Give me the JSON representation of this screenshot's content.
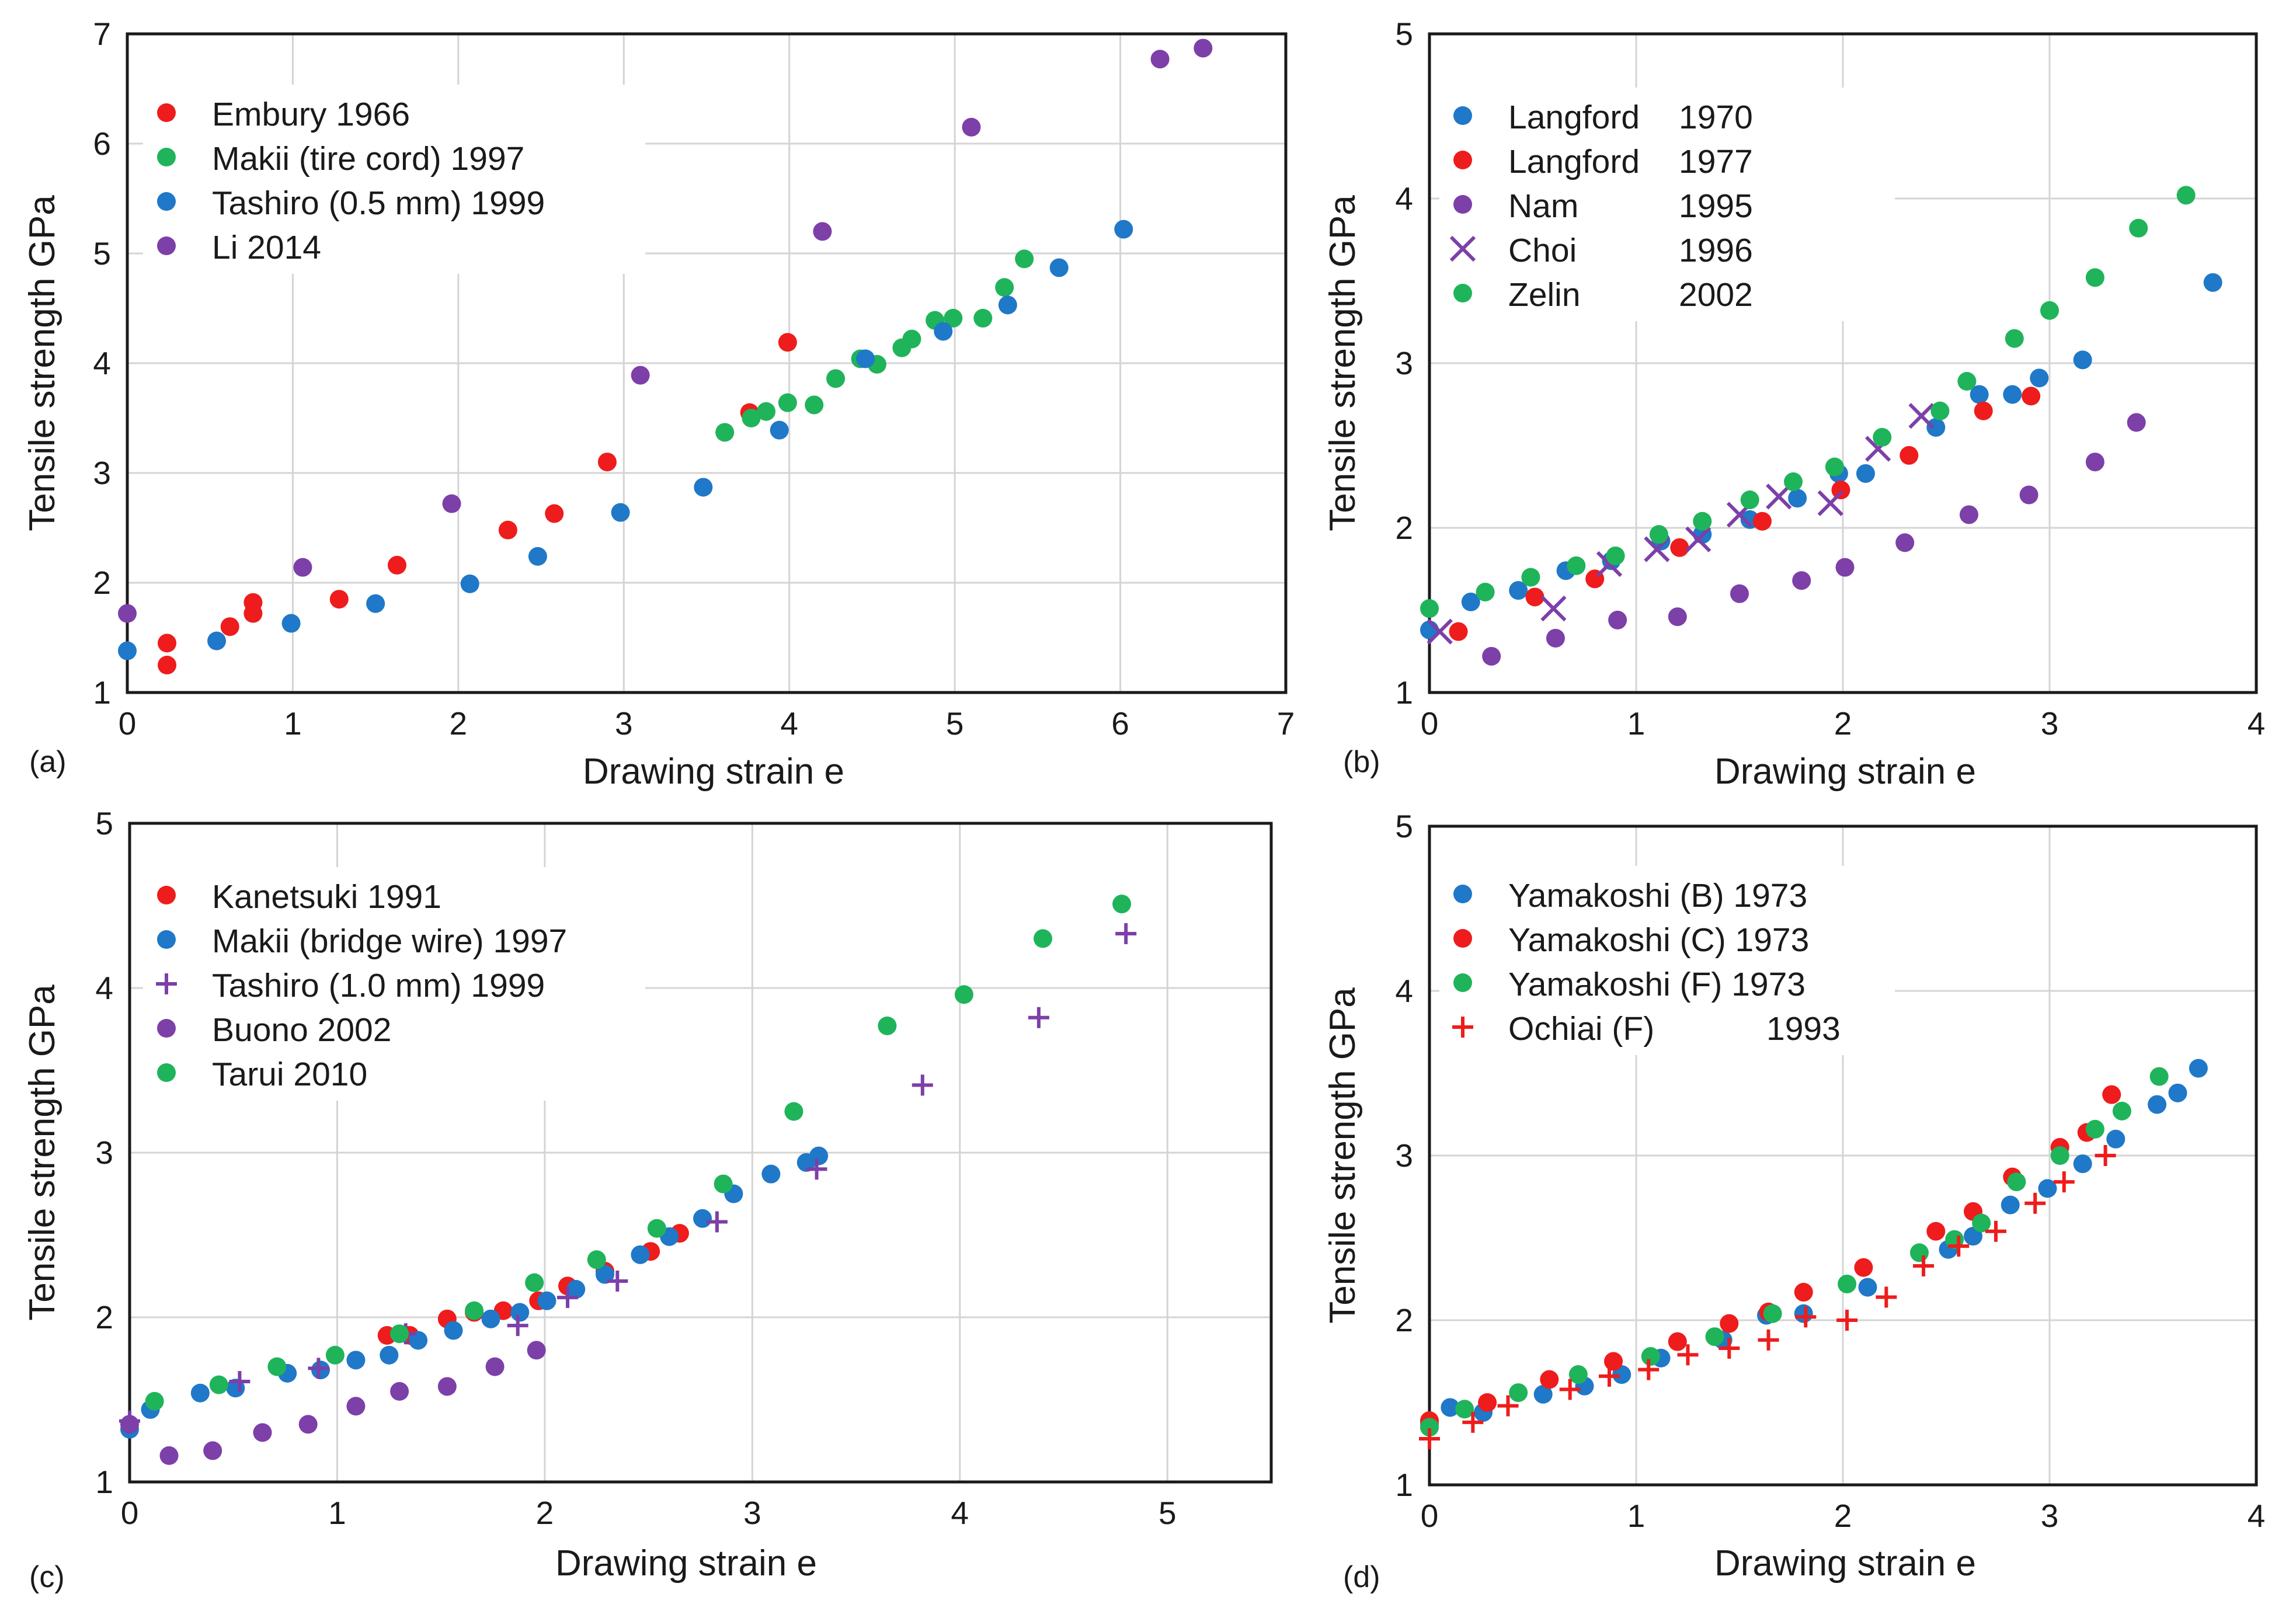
{
  "colors": {
    "red": "#ee1c1c",
    "green": "#1fb45a",
    "blue": "#1f78c8",
    "purple": "#7d3fa8"
  },
  "chart_data": [
    {
      "type": "scatter",
      "panel_label": "(a)",
      "xlabel": "Drawing strain  e",
      "ylabel": "Tensile strength  GPa",
      "xlim": [
        0,
        7
      ],
      "ylim": [
        1,
        7
      ],
      "xticks": [
        "0",
        "1",
        "2",
        "3",
        "4",
        "5",
        "6",
        "7"
      ],
      "yticks": [
        "1",
        "2",
        "3",
        "4",
        "5",
        "6",
        "7"
      ],
      "grid": true,
      "legend": "top-left",
      "series": [
        {
          "name": "Embury 1966",
          "color": "red",
          "marker": "circle",
          "x": [
            0.24,
            0.24,
            0.62,
            0.76,
            0.76,
            1.28,
            1.63,
            2.3,
            2.58,
            2.9,
            3.76,
            3.99
          ],
          "y": [
            1.25,
            1.45,
            1.6,
            1.72,
            1.82,
            1.85,
            2.16,
            2.48,
            2.63,
            3.1,
            3.55,
            4.19
          ]
        },
        {
          "name": "Makii (tire cord) 1997",
          "color": "green",
          "marker": "circle",
          "x": [
            3.61,
            3.77,
            3.86,
            3.99,
            4.15,
            4.28,
            4.43,
            4.53,
            4.68,
            4.74,
            4.88,
            4.99,
            5.17,
            5.3,
            5.42
          ],
          "y": [
            3.37,
            3.5,
            3.56,
            3.64,
            3.62,
            3.86,
            4.04,
            3.99,
            4.14,
            4.22,
            4.39,
            4.41,
            4.41,
            4.69,
            4.95
          ]
        },
        {
          "name": "Tashiro (0.5 mm) 1999",
          "color": "blue",
          "marker": "circle",
          "x": [
            0.0,
            0.54,
            0.99,
            1.5,
            2.07,
            2.48,
            2.98,
            3.48,
            3.94,
            4.46,
            4.93,
            5.32,
            5.63,
            6.02
          ],
          "y": [
            1.38,
            1.47,
            1.63,
            1.81,
            1.99,
            2.24,
            2.64,
            2.87,
            3.39,
            4.04,
            4.29,
            4.53,
            4.87,
            5.22
          ]
        },
        {
          "name": "Li  2014",
          "color": "purple",
          "marker": "circle",
          "x": [
            0.0,
            1.06,
            1.96,
            3.1,
            4.2,
            5.1,
            6.24,
            6.5
          ],
          "y": [
            1.72,
            2.14,
            2.72,
            3.89,
            5.2,
            6.15,
            6.77,
            6.87
          ]
        }
      ]
    },
    {
      "type": "scatter",
      "panel_label": "(b)",
      "xlabel": "Drawing strain  e",
      "ylabel": "Tensile strength  GPa",
      "xlim": [
        0,
        4
      ],
      "ylim": [
        1,
        5
      ],
      "xticks": [
        "0",
        "1",
        "2",
        "3",
        "4"
      ],
      "yticks": [
        "1",
        "2",
        "3",
        "4",
        "5"
      ],
      "grid": true,
      "legend": "top-left",
      "series": [
        {
          "name": "Langford",
          "year": "1970",
          "color": "blue",
          "marker": "circle",
          "x": [
            0.0,
            0.2,
            0.43,
            0.66,
            0.88,
            1.12,
            1.32,
            1.55,
            1.78,
            1.98,
            2.11,
            2.45,
            2.66,
            2.82,
            2.95,
            3.16,
            3.79
          ],
          "y": [
            1.38,
            1.55,
            1.62,
            1.74,
            1.8,
            1.92,
            1.96,
            2.05,
            2.18,
            2.33,
            2.33,
            2.61,
            2.81,
            2.81,
            2.91,
            3.02,
            3.49
          ]
        },
        {
          "name": "Langford",
          "year": "1977",
          "color": "red",
          "marker": "circle",
          "x": [
            0.14,
            0.51,
            0.8,
            1.21,
            1.61,
            1.99,
            2.32,
            2.68,
            2.91
          ],
          "y": [
            1.37,
            1.58,
            1.69,
            1.88,
            2.04,
            2.23,
            2.44,
            2.71,
            2.8
          ]
        },
        {
          "name": "Nam",
          "year": "1995",
          "color": "purple",
          "marker": "circle",
          "x": [
            0.3,
            0.61,
            0.91,
            1.2,
            1.5,
            1.8,
            2.01,
            2.3,
            2.61,
            2.9,
            3.22,
            3.42
          ],
          "y": [
            1.22,
            1.33,
            1.44,
            1.46,
            1.6,
            1.68,
            1.76,
            1.91,
            2.08,
            2.2,
            2.4,
            2.64
          ]
        },
        {
          "name": "Choi",
          "year": "1996",
          "color": "purple",
          "marker": "x",
          "x": [
            0.05,
            0.6,
            0.87,
            1.1,
            1.3,
            1.5,
            1.69,
            1.94,
            2.17,
            2.38
          ],
          "y": [
            1.37,
            1.51,
            1.78,
            1.87,
            1.93,
            2.08,
            2.19,
            2.15,
            2.48,
            2.68
          ]
        },
        {
          "name": "Zelin",
          "year": "2002",
          "color": "green",
          "marker": "circle",
          "x": [
            0.0,
            0.27,
            0.49,
            0.71,
            0.9,
            1.11,
            1.32,
            1.55,
            1.76,
            1.96,
            2.19,
            2.47,
            2.6,
            2.83,
            3.0,
            3.22,
            3.43,
            3.66
          ],
          "y": [
            1.51,
            1.61,
            1.7,
            1.77,
            1.83,
            1.96,
            2.04,
            2.17,
            2.28,
            2.37,
            2.55,
            2.71,
            2.89,
            3.15,
            3.32,
            3.52,
            3.82,
            4.02
          ]
        }
      ]
    },
    {
      "type": "scatter",
      "panel_label": "(c)",
      "xlabel": "Drawing strain  e",
      "ylabel": "Tensile strength  GPa",
      "xlim": [
        0,
        5.5
      ],
      "ylim": [
        1,
        5
      ],
      "xticks": [
        "0",
        "1",
        "2",
        "3",
        "4",
        "5"
      ],
      "yticks": [
        "1",
        "2",
        "3",
        "4",
        "5"
      ],
      "grid": true,
      "legend": "top-left",
      "series": [
        {
          "name": "Kanetsuki  1991",
          "color": "red",
          "marker": "circle",
          "x": [
            1.24,
            1.35,
            1.53,
            1.66,
            1.8,
            1.97,
            2.11,
            2.29,
            2.51,
            2.65
          ],
          "y": [
            1.89,
            1.89,
            1.99,
            2.03,
            2.04,
            2.1,
            2.19,
            2.28,
            2.4,
            2.51
          ]
        },
        {
          "name": "Makii (bridge wire) 1997",
          "color": "blue",
          "marker": "circle",
          "x": [
            0.0,
            0.1,
            0.34,
            0.51,
            0.76,
            0.92,
            1.09,
            1.25,
            1.39,
            1.56,
            1.74,
            1.88,
            2.01,
            2.15,
            2.29,
            2.46,
            2.6,
            2.76,
            2.91,
            3.09,
            3.26,
            3.32
          ],
          "y": [
            1.32,
            1.44,
            1.54,
            1.57,
            1.66,
            1.68,
            1.74,
            1.77,
            1.86,
            1.92,
            1.99,
            2.03,
            2.1,
            2.17,
            2.26,
            2.38,
            2.49,
            2.6,
            2.75,
            2.87,
            2.94,
            2.98
          ]
        },
        {
          "name": "Tashiro (1.0 mm) 1999",
          "color": "purple",
          "marker": "plus",
          "x": [
            0.0,
            0.53,
            0.91,
            1.33,
            1.87,
            2.11,
            2.35,
            2.83,
            3.31,
            3.82,
            4.38,
            4.8
          ],
          "y": [
            1.37,
            1.61,
            1.69,
            1.9,
            1.95,
            2.12,
            2.22,
            2.58,
            2.9,
            3.41,
            3.82,
            4.33
          ]
        },
        {
          "name": "Buono  2002",
          "color": "purple",
          "marker": "circle",
          "x": [
            0.0,
            0.19,
            0.4,
            0.64,
            0.86,
            1.09,
            1.3,
            1.53,
            1.76,
            1.96
          ],
          "y": [
            1.35,
            1.16,
            1.19,
            1.3,
            1.35,
            1.46,
            1.55,
            1.58,
            1.7,
            1.8
          ]
        },
        {
          "name": "Tarui  2010",
          "color": "green",
          "marker": "circle",
          "x": [
            0.12,
            0.43,
            0.71,
            0.99,
            1.3,
            1.66,
            1.95,
            2.25,
            2.54,
            2.86,
            3.2,
            3.65,
            4.02,
            4.4,
            4.78
          ],
          "y": [
            1.49,
            1.59,
            1.7,
            1.77,
            1.9,
            2.04,
            2.21,
            2.35,
            2.54,
            2.81,
            3.25,
            3.77,
            3.96,
            4.3,
            4.51
          ]
        }
      ]
    },
    {
      "type": "scatter",
      "panel_label": "(d)",
      "xlabel": "Drawing strain  e",
      "ylabel": "Tensile strength  GPa",
      "xlim": [
        0,
        4
      ],
      "ylim": [
        1,
        5
      ],
      "xticks": [
        "0",
        "1",
        "2",
        "3",
        "4"
      ],
      "yticks": [
        "1",
        "2",
        "3",
        "4",
        "5"
      ],
      "grid": true,
      "legend": "top-left",
      "series": [
        {
          "name": "Yamakoshi (B) 1973",
          "color": "blue",
          "marker": "circle",
          "x": [
            0.0,
            0.1,
            0.26,
            0.55,
            0.75,
            0.93,
            1.12,
            1.42,
            1.63,
            1.81,
            2.12,
            2.51,
            2.63,
            2.81,
            2.99,
            3.16,
            3.32,
            3.52,
            3.62,
            3.72
          ],
          "y": [
            1.37,
            1.47,
            1.44,
            1.55,
            1.6,
            1.67,
            1.77,
            1.88,
            2.03,
            2.04,
            2.2,
            2.43,
            2.51,
            2.7,
            2.8,
            2.95,
            3.1,
            3.31,
            3.38,
            3.53
          ]
        },
        {
          "name": "Yamakoshi (C) 1973",
          "color": "red",
          "marker": "circle",
          "x": [
            0.0,
            0.28,
            0.58,
            0.89,
            1.2,
            1.45,
            1.64,
            1.81,
            2.1,
            2.45,
            2.63,
            2.82,
            3.05,
            3.18,
            3.3
          ],
          "y": [
            1.39,
            1.5,
            1.64,
            1.75,
            1.87,
            1.98,
            2.05,
            2.17,
            2.32,
            2.54,
            2.66,
            2.87,
            3.05,
            3.14,
            3.37
          ]
        },
        {
          "name": "Yamakoshi (F) 1973",
          "color": "green",
          "marker": "circle",
          "x": [
            0.0,
            0.17,
            0.43,
            0.72,
            1.07,
            1.38,
            1.66,
            2.02,
            2.37,
            2.54,
            2.67,
            2.84,
            3.05,
            3.22,
            3.35,
            3.53
          ],
          "y": [
            1.35,
            1.46,
            1.56,
            1.67,
            1.78,
            1.9,
            2.04,
            2.22,
            2.41,
            2.49,
            2.59,
            2.84,
            3.0,
            3.16,
            3.27,
            3.48
          ]
        },
        {
          "name": "Ochiai (F)",
          "year": "1993",
          "color": "red",
          "marker": "plus",
          "x": [
            0.0,
            0.21,
            0.38,
            0.68,
            0.87,
            1.06,
            1.25,
            1.45,
            1.64,
            1.82,
            2.02,
            2.21,
            2.39,
            2.56,
            2.74,
            2.93,
            3.07,
            3.27
          ],
          "y": [
            1.28,
            1.38,
            1.48,
            1.58,
            1.66,
            1.7,
            1.79,
            1.83,
            1.88,
            2.02,
            2.0,
            2.14,
            2.33,
            2.45,
            2.54,
            2.71,
            2.84,
            3.0
          ]
        }
      ]
    }
  ]
}
